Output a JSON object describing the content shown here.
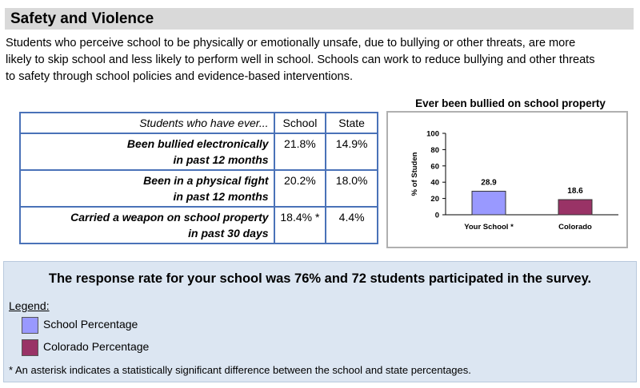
{
  "section": {
    "title": "Safety and Violence",
    "intro_lines": [
      "Students who perceive school to be physically or emotionally unsafe, due to bullying or other threats, are more",
      "likely to skip school and less likely to perform well in school.  Schools can work to reduce bullying and other threats",
      "to safety through school policies and evidence-based interventions."
    ]
  },
  "table": {
    "header": {
      "question": "Students who have ever...",
      "school": "School",
      "state": "State"
    },
    "rows": [
      {
        "line1": "Been bullied electronically",
        "line2": "in past 12 months",
        "school": "21.8%",
        "state": "14.9%"
      },
      {
        "line1": "Been in a physical fight",
        "line2": "in past 12 months",
        "school": "20.2%",
        "state": "18.0%"
      },
      {
        "line1": "Carried a weapon on school property",
        "line2": "in past 30 days",
        "school": "18.4% *",
        "state": "4.4%"
      }
    ]
  },
  "chart_data": {
    "type": "bar",
    "title": "Ever been bullied on school property",
    "ylabel": "% of Studen",
    "xlabel": "",
    "ylim": [
      0,
      100
    ],
    "yticks": [
      0,
      20,
      40,
      60,
      80,
      100
    ],
    "categories": [
      "Your School *",
      "Colorado"
    ],
    "values": [
      28.9,
      18.6
    ],
    "data_labels": [
      "28.9",
      "18.6"
    ],
    "colors": [
      "#9999ff",
      "#993366"
    ],
    "grid": false,
    "legend": "none"
  },
  "summary": {
    "response_rate": "The response rate for your school was 76% and 72 students participated in the survey.",
    "legend_label": "Legend:",
    "legend_items": [
      {
        "label": "School Percentage",
        "color": "#9999ff"
      },
      {
        "label": "Colorado Percentage",
        "color": "#993366"
      }
    ],
    "footnote": "* An asterisk indicates a statistically significant difference between the school and state percentages."
  }
}
